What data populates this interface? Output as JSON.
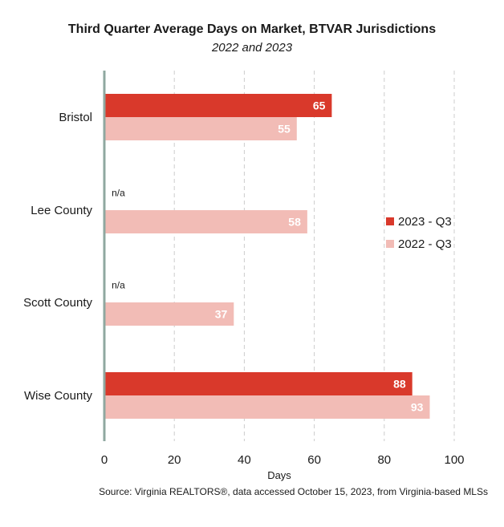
{
  "chart_data": {
    "type": "bar",
    "orientation": "horizontal",
    "title": "Third Quarter Average Days on Market, BTVAR Jurisdictions",
    "subtitle": "2022 and 2023",
    "xlabel": "Days",
    "ylabel": "",
    "xlim": [
      0,
      100
    ],
    "xticks": [
      0,
      20,
      40,
      60,
      80,
      100
    ],
    "grid": "vertical dashed",
    "legend_position": "right",
    "categories": [
      "Bristol",
      "Lee County",
      "Scott County",
      "Wise County"
    ],
    "series": [
      {
        "name": "2023 - Q3",
        "color": "#d9392b",
        "values": [
          65,
          null,
          null,
          88
        ]
      },
      {
        "name": "2022 - Q3",
        "color": "#f2bcb6",
        "values": [
          55,
          58,
          37,
          93
        ]
      }
    ],
    "missing_label": "n/a",
    "source": "Source: Virginia REALTORS®, data accessed October 15, 2023, from Virginia-based MLSs"
  }
}
